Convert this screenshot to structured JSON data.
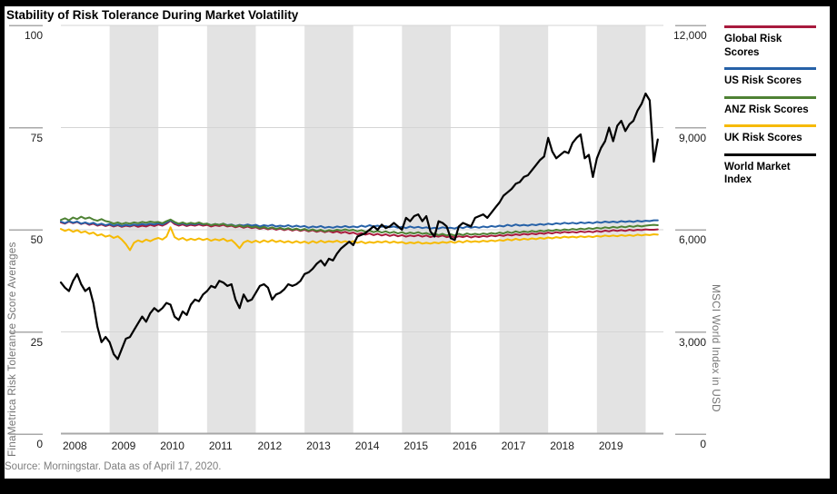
{
  "title": "Stability of Risk Tolerance During Market Volatility",
  "source_note": "Source: Morningstar.  Data as of April 17, 2020.",
  "colors": {
    "global_risk": "#a81a3d",
    "us_risk": "#2661a7",
    "anz_risk": "#4e8234",
    "uk_risk": "#f6ba00",
    "world_index": "#000000",
    "band": "#e3e3e3",
    "gridline": "#d5d5d5",
    "axis_line": "#a8a8a8",
    "axis_text": "#1c1c1c",
    "muted_text": "#757575"
  },
  "axes": {
    "left": {
      "label": "FinaMetrica Risk Tolerance Score Averages",
      "tick_labels": [
        "100",
        "75",
        "50",
        "25",
        "0"
      ],
      "tick_values": [
        100,
        75,
        50,
        25,
        0
      ]
    },
    "right": {
      "label": "MSCI World Index in USD",
      "tick_labels": [
        "12,000",
        "9,000",
        "6,000",
        "3,000",
        "0"
      ],
      "tick_values": [
        12000,
        9000,
        6000,
        3000,
        0
      ]
    },
    "x": {
      "labels": [
        "2008",
        "2009",
        "2010",
        "2011",
        "2012",
        "2013",
        "2014",
        "2015",
        "2016",
        "2017",
        "2018",
        "2019"
      ]
    }
  },
  "legend": [
    {
      "label": "Global Risk Scores",
      "color": "#a81a3d"
    },
    {
      "label": "US Risk Scores",
      "color": "#2661a7"
    },
    {
      "label": "ANZ Risk Scores",
      "color": "#4e8234"
    },
    {
      "label": "UK Risk Scores",
      "color": "#f6ba00"
    },
    {
      "label": "World Market Index",
      "color": "#000000"
    }
  ],
  "chart_data": {
    "type": "line",
    "title": "Stability of Risk Tolerance During Market Volatility",
    "x_unit": "monthly, January 2008 through April 2020",
    "x_start_year": 2008,
    "points_per_year": 12,
    "x_year_span": [
      2008,
      2020.4
    ],
    "left_ylim": [
      0,
      100
    ],
    "right_ylim": [
      0,
      12000
    ],
    "grid": true,
    "legend_position": "right",
    "shaded_year_bands": [
      2009,
      2011,
      2013,
      2015,
      2017,
      2019
    ],
    "series": [
      {
        "name": "Global Risk Scores",
        "axis": "left",
        "color": "#a81a3d",
        "values": [
          51.8,
          51.5,
          52.0,
          51.6,
          51.9,
          51.4,
          51.7,
          51.2,
          51.5,
          51.0,
          51.3,
          50.9,
          51.2,
          50.8,
          51.1,
          50.7,
          51.0,
          50.8,
          51.1,
          50.7,
          51.0,
          50.8,
          51.2,
          50.9,
          51.3,
          51.0,
          51.5,
          52.2,
          51.4,
          51.0,
          51.3,
          50.9,
          51.2,
          51.0,
          51.3,
          51.0,
          51.2,
          50.8,
          51.1,
          50.9,
          51.2,
          50.8,
          51.0,
          50.6,
          50.9,
          50.5,
          50.8,
          50.4,
          50.6,
          50.2,
          50.5,
          50.1,
          50.4,
          50.0,
          50.3,
          49.9,
          50.2,
          49.8,
          50.1,
          49.7,
          50.0,
          49.6,
          49.9,
          49.5,
          49.8,
          49.4,
          49.7,
          49.3,
          49.6,
          49.2,
          49.5,
          49.1,
          49.3,
          48.9,
          49.2,
          48.8,
          49.1,
          48.7,
          49.0,
          48.6,
          48.9,
          48.5,
          48.8,
          48.4,
          48.7,
          48.3,
          48.6,
          48.4,
          48.7,
          48.3,
          48.6,
          48.2,
          48.5,
          48.3,
          48.6,
          48.2,
          48.4,
          48.1,
          48.4,
          48.2,
          48.5,
          48.1,
          48.4,
          48.2,
          48.5,
          48.3,
          48.6,
          48.4,
          48.7,
          48.5,
          48.8,
          48.6,
          48.9,
          48.7,
          49.0,
          48.8,
          49.1,
          48.9,
          49.2,
          49.0,
          49.3,
          49.1,
          49.4,
          49.2,
          49.5,
          49.3,
          49.5,
          49.3,
          49.6,
          49.4,
          49.6,
          49.4,
          49.7,
          49.5,
          49.8,
          49.6,
          49.9,
          49.7,
          49.9,
          49.7,
          50.0,
          49.8,
          50.0,
          49.9,
          50.1,
          50.0,
          50.0,
          50.1
        ]
      },
      {
        "name": "US Risk Scores",
        "axis": "left",
        "color": "#2661a7",
        "values": [
          52.0,
          51.6,
          52.1,
          51.7,
          52.0,
          51.5,
          51.8,
          51.4,
          51.7,
          51.2,
          51.5,
          51.1,
          51.4,
          51.0,
          51.3,
          50.9,
          51.2,
          51.0,
          51.3,
          51.1,
          51.4,
          51.2,
          51.5,
          51.3,
          51.6,
          51.3,
          51.8,
          52.3,
          51.7,
          51.3,
          51.6,
          51.2,
          51.5,
          51.3,
          51.6,
          51.3,
          51.5,
          51.1,
          51.4,
          51.2,
          51.5,
          51.1,
          51.3,
          50.9,
          51.2,
          51.0,
          51.3,
          51.0,
          51.2,
          50.8,
          51.1,
          50.9,
          51.2,
          50.8,
          51.0,
          50.8,
          51.1,
          50.7,
          51.0,
          50.7,
          50.9,
          50.5,
          50.8,
          50.6,
          50.9,
          50.5,
          50.7,
          50.5,
          50.8,
          50.6,
          50.9,
          50.6,
          50.8,
          50.6,
          51.0,
          50.7,
          51.1,
          50.8,
          51.0,
          50.7,
          50.9,
          50.6,
          50.8,
          50.5,
          50.7,
          50.4,
          50.8,
          50.5,
          50.7,
          50.4,
          50.6,
          50.3,
          50.5,
          50.3,
          50.6,
          50.4,
          50.5,
          50.3,
          50.7,
          50.4,
          50.8,
          50.5,
          50.7,
          50.5,
          50.8,
          50.6,
          50.9,
          50.7,
          51.0,
          50.8,
          51.2,
          50.9,
          51.3,
          51.0,
          51.2,
          51.0,
          51.3,
          51.1,
          51.4,
          51.2,
          51.5,
          51.3,
          51.6,
          51.4,
          51.7,
          51.5,
          51.7,
          51.5,
          51.8,
          51.6,
          51.8,
          51.6,
          51.9,
          51.7,
          52.0,
          51.8,
          52.0,
          51.8,
          52.1,
          51.9,
          52.1,
          51.9,
          52.2,
          52.0,
          52.2,
          52.1,
          52.3,
          52.3
        ]
      },
      {
        "name": "ANZ Risk Scores",
        "axis": "left",
        "color": "#4e8234",
        "values": [
          52.4,
          52.8,
          52.3,
          53.0,
          52.6,
          53.2,
          52.7,
          53.0,
          52.5,
          52.2,
          52.6,
          52.1,
          51.9,
          51.5,
          51.8,
          51.4,
          51.7,
          51.5,
          51.8,
          51.6,
          51.9,
          51.7,
          52.0,
          51.8,
          51.9,
          51.6,
          52.1,
          52.5,
          51.9,
          51.5,
          51.8,
          51.4,
          51.7,
          51.5,
          51.8,
          51.4,
          51.5,
          51.1,
          51.4,
          51.2,
          51.5,
          51.0,
          51.2,
          50.8,
          51.1,
          50.7,
          51.0,
          50.6,
          50.8,
          50.4,
          50.7,
          50.3,
          50.6,
          50.2,
          50.5,
          50.1,
          50.4,
          50.0,
          50.3,
          49.9,
          50.2,
          49.8,
          50.1,
          49.7,
          50.0,
          49.6,
          49.9,
          49.7,
          50.0,
          49.8,
          50.1,
          49.8,
          50.0,
          49.6,
          49.9,
          49.5,
          49.8,
          49.4,
          49.7,
          49.3,
          49.6,
          49.2,
          49.5,
          49.1,
          49.4,
          49.0,
          49.3,
          49.1,
          49.4,
          49.0,
          49.2,
          48.8,
          49.1,
          48.7,
          49.0,
          48.6,
          48.9,
          48.6,
          49.0,
          48.7,
          49.1,
          48.8,
          49.0,
          48.8,
          49.1,
          48.9,
          49.2,
          49.0,
          49.3,
          49.1,
          49.5,
          49.2,
          49.6,
          49.3,
          49.6,
          49.4,
          49.7,
          49.5,
          49.8,
          49.6,
          49.9,
          49.7,
          50.0,
          49.8,
          50.1,
          49.9,
          50.2,
          50.0,
          50.3,
          50.1,
          50.4,
          50.2,
          50.5,
          50.3,
          50.6,
          50.4,
          50.7,
          50.5,
          50.8,
          50.6,
          50.9,
          50.7,
          51.0,
          50.8,
          51.0,
          51.1,
          51.2,
          51.1
        ]
      },
      {
        "name": "UK Risk Scores",
        "axis": "left",
        "color": "#f6ba00",
        "values": [
          50.2,
          49.7,
          50.1,
          49.5,
          49.9,
          49.3,
          49.6,
          49.0,
          49.3,
          48.6,
          48.9,
          48.3,
          48.6,
          48.0,
          48.4,
          47.6,
          46.5,
          45.0,
          46.8,
          47.4,
          47.0,
          47.6,
          47.2,
          47.7,
          48.0,
          47.6,
          48.3,
          50.6,
          48.2,
          47.6,
          48.0,
          47.4,
          47.8,
          47.5,
          47.9,
          47.5,
          47.8,
          47.3,
          47.7,
          47.4,
          47.8,
          47.2,
          47.5,
          46.6,
          45.5,
          46.9,
          47.3,
          46.9,
          47.3,
          46.9,
          47.4,
          47.0,
          47.5,
          47.0,
          47.3,
          46.9,
          47.2,
          46.8,
          47.2,
          46.8,
          47.1,
          46.7,
          47.2,
          46.8,
          47.3,
          46.9,
          47.2,
          47.0,
          47.3,
          46.9,
          47.2,
          46.9,
          47.2,
          46.8,
          47.1,
          46.7,
          47.0,
          46.8,
          47.1,
          46.9,
          47.2,
          46.8,
          47.1,
          46.8,
          47.0,
          46.6,
          46.9,
          46.7,
          47.0,
          46.6,
          46.8,
          46.6,
          46.9,
          46.7,
          47.0,
          46.8,
          47.1,
          46.8,
          47.2,
          46.9,
          47.3,
          47.0,
          47.2,
          47.0,
          47.3,
          47.1,
          47.4,
          47.2,
          47.5,
          47.3,
          47.7,
          47.4,
          47.8,
          47.5,
          47.8,
          47.6,
          47.9,
          47.7,
          48.0,
          47.8,
          48.1,
          47.9,
          48.2,
          48.0,
          48.3,
          48.1,
          48.3,
          48.1,
          48.4,
          48.2,
          48.4,
          48.2,
          48.5,
          48.3,
          48.6,
          48.4,
          48.6,
          48.4,
          48.7,
          48.5,
          48.7,
          48.5,
          48.8,
          48.6,
          48.8,
          48.7,
          48.9,
          48.8
        ]
      },
      {
        "name": "World Market Index",
        "axis": "right",
        "color": "#000000",
        "values": [
          4450,
          4300,
          4200,
          4500,
          4700,
          4400,
          4200,
          4300,
          3850,
          3150,
          2700,
          2850,
          2700,
          2350,
          2200,
          2500,
          2800,
          2850,
          3050,
          3250,
          3450,
          3300,
          3550,
          3700,
          3600,
          3700,
          3850,
          3800,
          3450,
          3350,
          3600,
          3500,
          3800,
          3950,
          3900,
          4100,
          4200,
          4350,
          4300,
          4500,
          4450,
          4350,
          4400,
          3950,
          3700,
          4100,
          3900,
          3950,
          4150,
          4350,
          4400,
          4300,
          3950,
          4100,
          4150,
          4250,
          4400,
          4350,
          4400,
          4500,
          4700,
          4750,
          4850,
          5000,
          5100,
          4950,
          5150,
          5100,
          5300,
          5450,
          5550,
          5650,
          5550,
          5800,
          5850,
          5900,
          6000,
          6100,
          6000,
          6150,
          6050,
          6100,
          6200,
          6100,
          6000,
          6350,
          6250,
          6400,
          6450,
          6250,
          6400,
          5950,
          5800,
          6250,
          6200,
          6100,
          5750,
          5700,
          6100,
          6200,
          6150,
          6100,
          6350,
          6400,
          6450,
          6350,
          6500,
          6650,
          6800,
          7000,
          7100,
          7200,
          7350,
          7400,
          7550,
          7600,
          7750,
          7900,
          8050,
          8150,
          8700,
          8300,
          8100,
          8200,
          8300,
          8250,
          8550,
          8700,
          8800,
          8100,
          8200,
          7550,
          8100,
          8400,
          8600,
          9000,
          8600,
          9050,
          9200,
          8900,
          9100,
          9200,
          9500,
          9700,
          10000,
          9800,
          8000,
          8650
        ]
      }
    ]
  }
}
